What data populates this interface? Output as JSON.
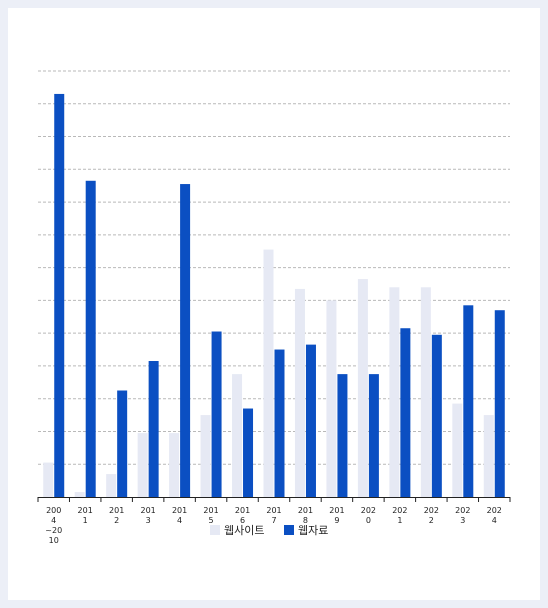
{
  "chart_data": {
    "type": "bar",
    "categories": [
      [
        "200",
        "4",
        "~20",
        "10"
      ],
      [
        "201",
        "1"
      ],
      [
        "201",
        "2"
      ],
      [
        "201",
        "3"
      ],
      [
        "201",
        "4"
      ],
      [
        "201",
        "5"
      ],
      [
        "201",
        "6"
      ],
      [
        "201",
        "7"
      ],
      [
        "201",
        "8"
      ],
      [
        "201",
        "9"
      ],
      [
        "202",
        "0"
      ],
      [
        "202",
        "1"
      ],
      [
        "202",
        "2"
      ],
      [
        "202",
        "3"
      ],
      [
        "202",
        "4"
      ]
    ],
    "series": [
      {
        "name": "웹사이트",
        "color": "#e6e9f4",
        "values": [
          10.5,
          1.5,
          7,
          19.5,
          19.5,
          25,
          37.5,
          75.5,
          63.5,
          60,
          66.5,
          64,
          64,
          28.5,
          25
        ]
      },
      {
        "name": "웹자료",
        "color": "#0b4fc2",
        "values": [
          123,
          96.5,
          32.5,
          41.5,
          95.5,
          50.5,
          27,
          45,
          46.5,
          37.5,
          37.5,
          51.5,
          49.5,
          58.5,
          57
        ]
      }
    ],
    "ylim": [
      0,
      130
    ],
    "ytick_step": 10,
    "grid": true,
    "legend": "bottom"
  }
}
